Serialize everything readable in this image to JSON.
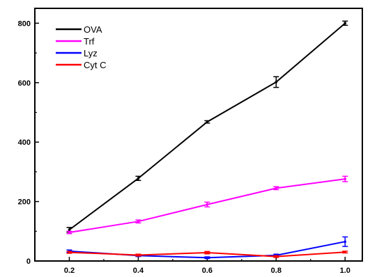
{
  "chart_data": {
    "type": "line",
    "title": "",
    "xlabel": "",
    "ylabel": "",
    "x": [
      0.2,
      0.4,
      0.6,
      0.8,
      1.0
    ],
    "x_ticks": [
      "0.2",
      "0.4",
      "0.6",
      "0.8",
      "1.0"
    ],
    "y_ticks": [
      "0",
      "200",
      "400",
      "600",
      "800"
    ],
    "xlim": [
      0.1,
      1.05
    ],
    "ylim": [
      0,
      850
    ],
    "grid": false,
    "legend_position": "top-left",
    "series": [
      {
        "name": "OVA",
        "color": "#000000",
        "values": [
          105,
          278,
          468,
          602,
          800
        ],
        "errors": [
          8,
          7,
          4,
          18,
          7
        ]
      },
      {
        "name": "Trf",
        "color": "#ff00ff",
        "values": [
          96,
          133,
          190,
          245,
          276
        ],
        "errors": [
          4,
          5,
          8,
          5,
          9
        ]
      },
      {
        "name": "Lyz",
        "color": "#0000ff",
        "values": [
          33,
          18,
          11,
          19,
          65
        ],
        "errors": [
          4,
          3,
          3,
          4,
          16
        ]
      },
      {
        "name": "Cyt C",
        "color": "#ff0000",
        "values": [
          29,
          20,
          28,
          15,
          30
        ],
        "errors": [
          3,
          3,
          4,
          3,
          3
        ]
      }
    ]
  }
}
